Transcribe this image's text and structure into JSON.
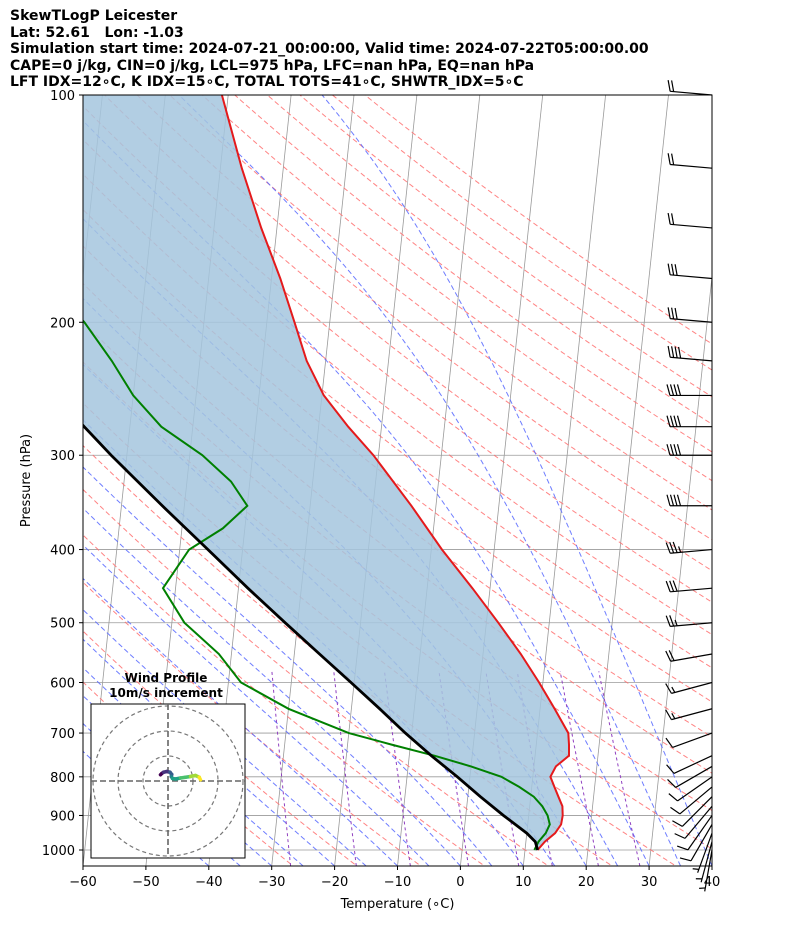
{
  "header": {
    "line1": "SkewTLogP Leicester",
    "line2": "Lat: 52.61   Lon: -1.03",
    "line3": "Simulation start time: 2024-07-21_00:00:00, Valid time: 2024-07-22T05:00:00.00",
    "line4": "CAPE=0 j/kg, CIN=0 j/kg, LCL=975 hPa, LFC=nan hPa, EQ=nan hPa",
    "line5": "LFT IDX=12∘C, K IDX=15∘C, TOTAL TOTS=41∘C, SHWTR_IDX=5∘C"
  },
  "chart_data": [
    {
      "type": "line",
      "subtype": "skew-t log-p",
      "xlabel": "Temperature (∘C)",
      "ylabel": "Pressure (hPa)",
      "xlim": [
        -60,
        40
      ],
      "ylim": [
        1050,
        100
      ],
      "yscale": "log",
      "x_ticks": [
        "−60",
        "−50",
        "−40",
        "−30",
        "−20",
        "−10",
        "0",
        "10",
        "20",
        "30",
        "40"
      ],
      "y_ticks": [
        "100",
        "200",
        "300",
        "400",
        "500",
        "600",
        "700",
        "800",
        "900",
        "1000"
      ],
      "grid": true,
      "colors": {
        "temperature": "#e41a1c",
        "dewpoint": "#008000",
        "parcel": "#000000",
        "fill": "#a5c6de",
        "dry_adiabat": "#ff6f6f",
        "moist_adiabat": "#5566ff",
        "mixing_ratio": "#9040c0",
        "isotherm": "#9a9a9a"
      },
      "series": [
        {
          "p": [
            1000,
            975,
            950,
            925,
            900,
            875,
            850,
            825,
            800,
            775,
            750,
            725,
            700,
            650,
            600,
            550,
            500,
            450,
            400,
            350,
            300,
            275,
            250,
            225,
            200,
            175,
            150,
            125,
            100
          ],
          "t": [
            12.0,
            13.0,
            14.5,
            15.3,
            15.4,
            15.2,
            14.4,
            13.6,
            12.8,
            13.5,
            15.4,
            15.2,
            14.9,
            12.3,
            9.4,
            6.0,
            1.9,
            -2.8,
            -8.3,
            -13.9,
            -20.8,
            -25.3,
            -29.7,
            -33.0,
            -35.6,
            -38.6,
            -42.5,
            -46.6,
            -51.0
          ]
        },
        {
          "p": [
            1000,
            975,
            950,
            925,
            900,
            875,
            850,
            825,
            800,
            775,
            750,
            725,
            700,
            650,
            600,
            550,
            500,
            450,
            400,
            375,
            350,
            325,
            300,
            275,
            250,
            225,
            200,
            175,
            150,
            125,
            100
          ],
          "td": [
            11.5,
            12.0,
            13.0,
            13.5,
            13.0,
            12.0,
            10.5,
            8.0,
            5.0,
            0.0,
            -6.0,
            -13.0,
            -20.0,
            -30.0,
            -38.0,
            -42.0,
            -48.0,
            -52.0,
            -48.5,
            -43.5,
            -40.0,
            -43.0,
            -48.0,
            -55.0,
            -60.0,
            -64.0,
            -69.0,
            -76.0,
            -84.0,
            -88.0,
            -92.0
          ]
        },
        {
          "p": [
            1000,
            975,
            950,
            900,
            850,
            800,
            750,
            700,
            650,
            600,
            550,
            500,
            450,
            400,
            350,
            300,
            250,
            200,
            150,
            100
          ],
          "t": [
            12.0,
            11.5,
            10.0,
            6.0,
            2.0,
            -2.0,
            -6.5,
            -11.0,
            -15.5,
            -20.5,
            -26.0,
            -32.0,
            -38.5,
            -45.5,
            -53.5,
            -62.5,
            -72.5,
            -83.5,
            -97.0,
            -111.0
          ]
        }
      ],
      "wind_barbs": {
        "p": [
          100,
          125,
          150,
          175,
          200,
          225,
          250,
          275,
          300,
          350,
          400,
          450,
          500,
          550,
          600,
          650,
          700,
          750,
          775,
          800,
          825,
          850,
          875,
          900,
          925,
          950,
          975,
          1000
        ],
        "speed_kt": [
          20,
          20,
          20,
          30,
          30,
          40,
          40,
          40,
          40,
          40,
          35,
          30,
          25,
          20,
          15,
          15,
          10,
          10,
          10,
          10,
          10,
          10,
          10,
          10,
          10,
          5,
          5,
          5
        ],
        "direction_deg": [
          275,
          275,
          275,
          275,
          275,
          275,
          270,
          270,
          270,
          270,
          265,
          265,
          265,
          260,
          255,
          255,
          250,
          245,
          240,
          235,
          230,
          225,
          220,
          215,
          210,
          200,
          195,
          190
        ]
      },
      "hodograph": {
        "title": "Wind Profile",
        "subtitle": "10m/s increment",
        "u": [
          -3.0,
          -2.5,
          -1.8,
          -0.5,
          0.8,
          1.5,
          1.3,
          1.8,
          3.0,
          5.0,
          7.0,
          9.0,
          11.0,
          12.5,
          13.0
        ],
        "v": [
          2.5,
          3.0,
          3.5,
          3.8,
          3.5,
          2.6,
          1.8,
          1.0,
          0.8,
          1.2,
          1.5,
          1.8,
          2.2,
          1.5,
          0.5
        ]
      }
    }
  ]
}
